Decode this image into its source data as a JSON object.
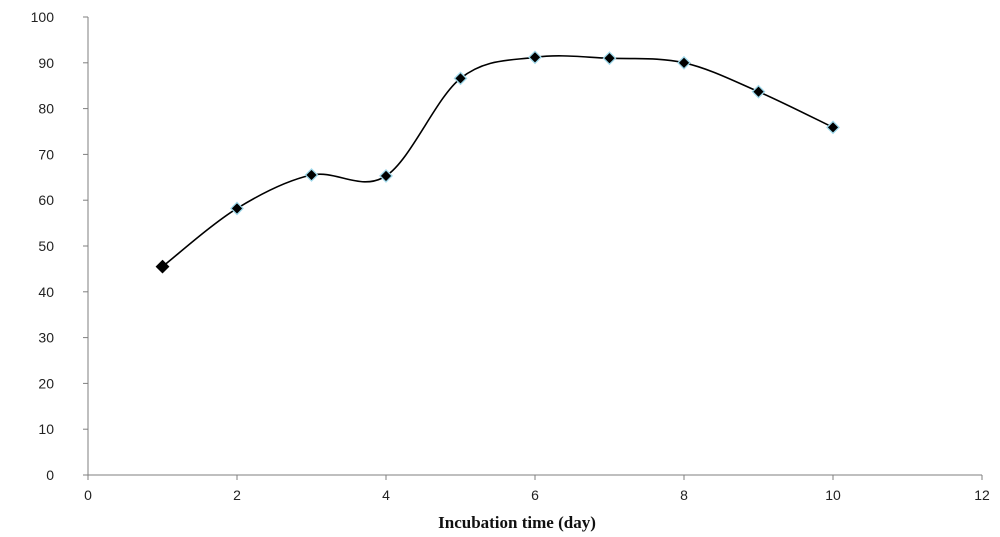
{
  "chart_data": {
    "type": "line",
    "title": "",
    "xlabel": "Incubation time (day)",
    "ylabel": "",
    "xlim": [
      0,
      12
    ],
    "ylim": [
      0,
      100
    ],
    "x_ticks": [
      "0",
      "2",
      "4",
      "6",
      "8",
      "10",
      "12"
    ],
    "y_ticks": [
      "0",
      "10",
      "20",
      "30",
      "40",
      "50",
      "60",
      "70",
      "80",
      "90",
      "100"
    ],
    "grid": false,
    "legend": "none",
    "smooth": true,
    "series": [
      {
        "x": [
          1,
          2,
          3,
          4,
          5,
          6,
          7,
          8,
          9,
          10
        ],
        "values": [
          45.5,
          58.2,
          65.5,
          65.3,
          86.6,
          91.2,
          91.0,
          90.0,
          83.7,
          75.9
        ]
      }
    ],
    "colors": {
      "line": "#000000",
      "marker_fill": "#000000",
      "marker_edge": "#9fd8ea",
      "axis": "#7f7f7f"
    }
  }
}
